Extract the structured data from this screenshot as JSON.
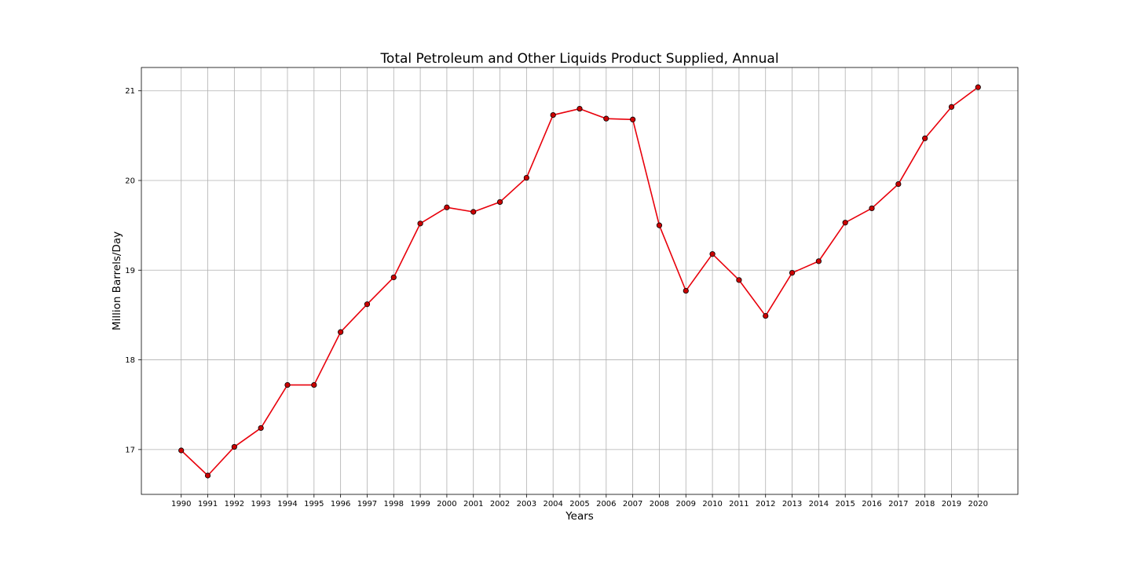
{
  "chart_data": {
    "type": "line",
    "title": "Total Petroleum and Other Liquids Product Supplied, Annual",
    "xlabel": "Years",
    "ylabel": "Million Barrels/Day",
    "x": [
      1990,
      1991,
      1992,
      1993,
      1994,
      1995,
      1996,
      1997,
      1998,
      1999,
      2000,
      2001,
      2002,
      2003,
      2004,
      2005,
      2006,
      2007,
      2008,
      2009,
      2010,
      2011,
      2012,
      2013,
      2014,
      2015,
      2016,
      2017,
      2018,
      2019,
      2020
    ],
    "x_ticks": [
      "1990",
      "1991",
      "1992",
      "1993",
      "1994",
      "1995",
      "1996",
      "1997",
      "1998",
      "1999",
      "2000",
      "2001",
      "2002",
      "2003",
      "2004",
      "2005",
      "2006",
      "2007",
      "2008",
      "2009",
      "2010",
      "2011",
      "2012",
      "2013",
      "2014",
      "2015",
      "2016",
      "2017",
      "2018",
      "2019",
      "2020"
    ],
    "y_ticks": [
      17,
      18,
      19,
      20,
      21
    ],
    "xlim": [
      1988.5,
      2021.5
    ],
    "ylim": [
      16.5,
      21.26
    ],
    "grid": true,
    "series": [
      {
        "values": [
          16.99,
          16.71,
          17.03,
          17.24,
          17.72,
          17.72,
          18.31,
          18.62,
          18.92,
          19.52,
          19.7,
          19.65,
          19.76,
          20.03,
          20.73,
          20.8,
          20.69,
          20.68,
          19.5,
          18.77,
          19.18,
          18.89,
          18.49,
          18.97,
          19.1,
          19.53,
          19.69,
          19.96,
          20.47,
          20.82,
          21.04
        ],
        "line_color": "#e8000b",
        "marker_color": "#cc0000",
        "marker_edge_color": "#000000"
      }
    ]
  }
}
